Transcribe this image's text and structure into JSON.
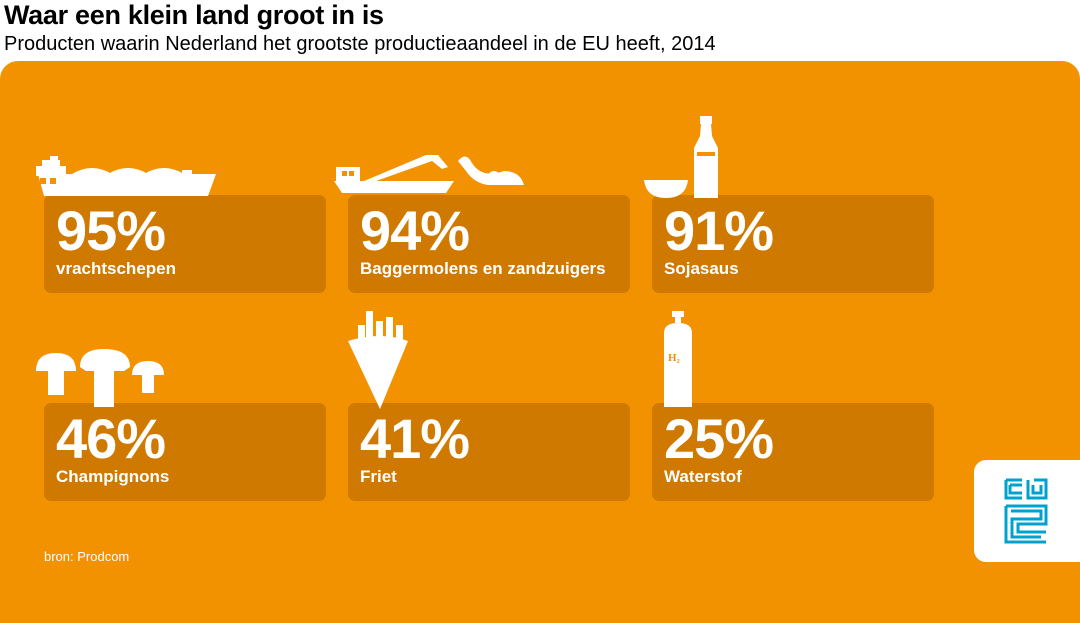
{
  "title": "Waar een klein land groot in is",
  "subtitle": "Producten waarin Nederland het grootste productieaandeel in de EU heeft, 2014",
  "items": [
    {
      "value": "95%",
      "label": "vrachtschepen",
      "icon": "cargo-ship-icon"
    },
    {
      "value": "94%",
      "label": "Baggermolens en zandzuigers",
      "icon": "dredger-icon"
    },
    {
      "value": "91%",
      "label": "Sojasaus",
      "icon": "soy-sauce-icon"
    },
    {
      "value": "46%",
      "label": "Champignons",
      "icon": "mushrooms-icon"
    },
    {
      "value": "41%",
      "label": "Friet",
      "icon": "fries-icon"
    },
    {
      "value": "25%",
      "label": "Waterstof",
      "icon": "hydrogen-cylinder-icon"
    }
  ],
  "hydrogen_symbol": "H₂",
  "source": "bron: Prodcom",
  "logo": "cbs",
  "colors": {
    "background": "#F39200",
    "card": "#D07900",
    "text": "#FFFFFF",
    "logo": "#00A1CD"
  }
}
